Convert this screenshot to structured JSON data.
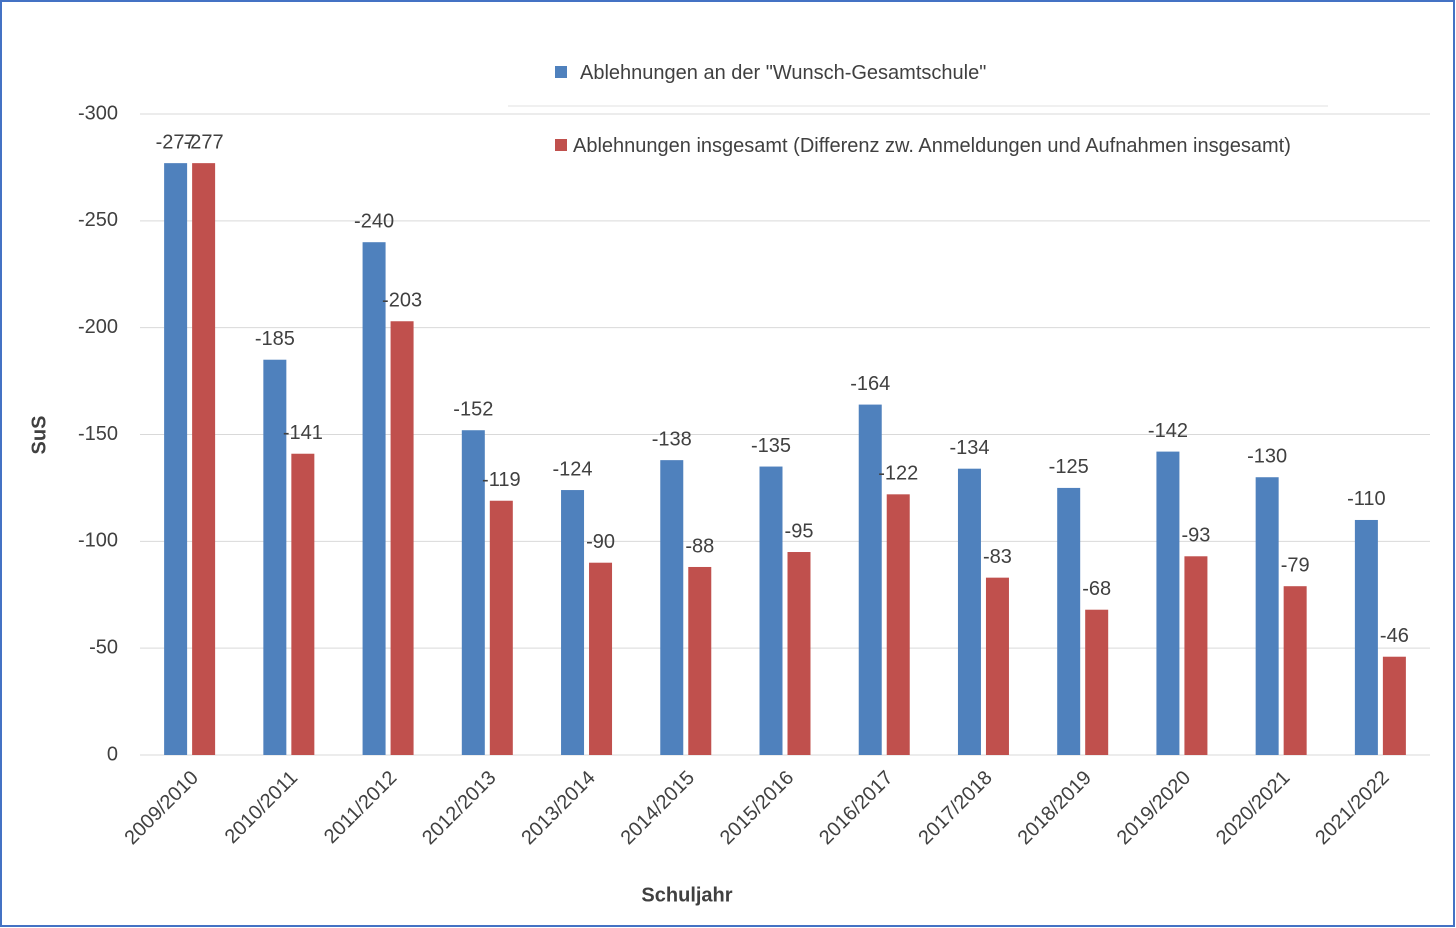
{
  "chart_data": {
    "type": "bar",
    "categories": [
      "2009/2010",
      "2010/2011",
      "2011/2012",
      "2012/2013",
      "2013/2014",
      "2014/2015",
      "2015/2016",
      "2016/2017",
      "2017/2018",
      "2018/2019",
      "2019/2020",
      "2020/2021",
      "2021/2022"
    ],
    "series": [
      {
        "name": "Ablehnungen an der \"Wunsch-Gesamtschule\"",
        "color": "#4f81bd",
        "values": [
          -277,
          -185,
          -240,
          -152,
          -124,
          -138,
          -135,
          -164,
          -134,
          -125,
          -142,
          -130,
          -110
        ]
      },
      {
        "name": "Ablehnungen insgesamt (Differenz zw. Anmeldungen und Aufnahmen insgesamt)",
        "color": "#c0504d",
        "values": [
          -277,
          -141,
          -203,
          -119,
          -90,
          -88,
          -95,
          -122,
          -83,
          -68,
          -93,
          -79,
          -46
        ]
      }
    ],
    "ylim": [
      0,
      -300
    ],
    "yticks": [
      0,
      -50,
      -100,
      -150,
      -200,
      -250,
      -300
    ],
    "ylabel": "SuS",
    "xlabel": "Schuljahr",
    "grid": true,
    "legend": "top-right"
  }
}
